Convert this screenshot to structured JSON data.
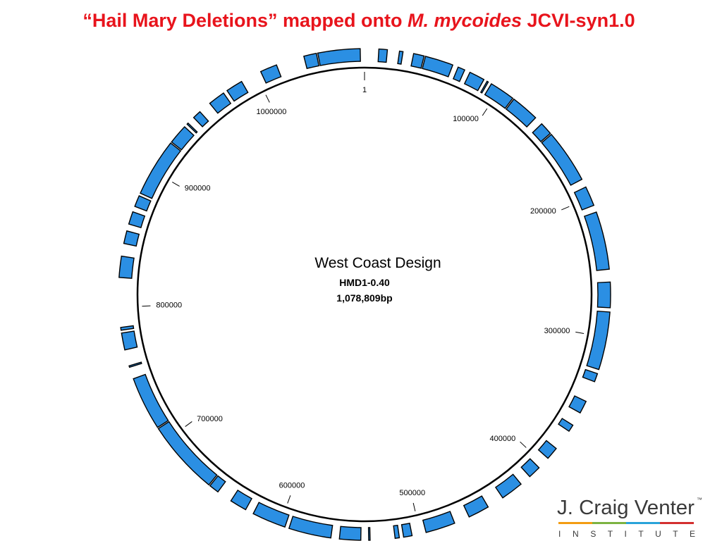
{
  "header": {
    "title_prefix": "“Hail Mary Deletions” mapped onto ",
    "title_italic": "M. mycoides",
    "title_suffix": " JCVI-syn1.0"
  },
  "center": {
    "design": "West Coast Design",
    "name": "HMD1-0.40",
    "size": {
      "value": 1078809,
      "label": "1,078,809bp"
    }
  },
  "ticks": [
    1,
    100000,
    200000,
    300000,
    400000,
    500000,
    600000,
    700000,
    800000,
    900000,
    1000000
  ],
  "deletions": [
    {
      "start": 10000,
      "end": 16000
    },
    {
      "start": 24500,
      "end": 27000
    },
    {
      "start": 34500,
      "end": 42000
    },
    {
      "start": 43000,
      "end": 63000
    },
    {
      "start": 67000,
      "end": 72000
    },
    {
      "start": 76000,
      "end": 87000
    },
    {
      "start": 89500,
      "end": 90500
    },
    {
      "start": 93000,
      "end": 111000
    },
    {
      "start": 112000,
      "end": 132000
    },
    {
      "start": 138000,
      "end": 147000
    },
    {
      "start": 148000,
      "end": 186000
    },
    {
      "start": 192000,
      "end": 206000
    },
    {
      "start": 211000,
      "end": 252000
    },
    {
      "start": 261000,
      "end": 279000
    },
    {
      "start": 282000,
      "end": 323000
    },
    {
      "start": 326000,
      "end": 332000
    },
    {
      "start": 347000,
      "end": 356000
    },
    {
      "start": 366000,
      "end": 371000
    },
    {
      "start": 386000,
      "end": 395000
    },
    {
      "start": 404000,
      "end": 413000
    },
    {
      "start": 421000,
      "end": 437000
    },
    {
      "start": 449000,
      "end": 464000
    },
    {
      "start": 475000,
      "end": 496000
    },
    {
      "start": 506000,
      "end": 512000
    },
    {
      "start": 515000,
      "end": 518000
    },
    {
      "start": 535500,
      "end": 536500
    },
    {
      "start": 542000,
      "end": 557000
    },
    {
      "start": 563000,
      "end": 593000
    },
    {
      "start": 596000,
      "end": 620000
    },
    {
      "start": 626000,
      "end": 638000
    },
    {
      "start": 649000,
      "end": 656000
    },
    {
      "start": 657000,
      "end": 710000
    },
    {
      "start": 711000,
      "end": 749000
    },
    {
      "start": 757500,
      "end": 758500
    },
    {
      "start": 770000,
      "end": 782000
    },
    {
      "start": 784000,
      "end": 786000
    },
    {
      "start": 821000,
      "end": 836000
    },
    {
      "start": 845000,
      "end": 854000
    },
    {
      "start": 859000,
      "end": 868000
    },
    {
      "start": 872000,
      "end": 880000
    },
    {
      "start": 882000,
      "end": 923000
    },
    {
      "start": 924000,
      "end": 938000
    },
    {
      "start": 940500,
      "end": 941500
    },
    {
      "start": 947000,
      "end": 953000
    },
    {
      "start": 962000,
      "end": 974000
    },
    {
      "start": 977000,
      "end": 989000
    },
    {
      "start": 1004000,
      "end": 1016000
    },
    {
      "start": 1036000,
      "end": 1045000
    },
    {
      "start": 1046000,
      "end": 1075800
    }
  ],
  "logo": {
    "name": "J. Craig Venter",
    "mark": "™",
    "institute": "I N S T I T U T E"
  }
}
